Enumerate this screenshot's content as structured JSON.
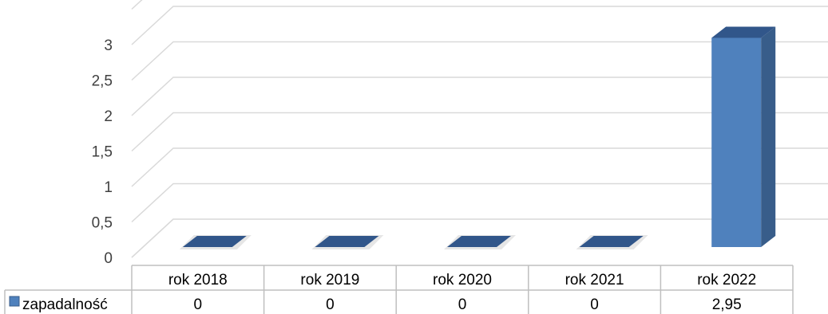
{
  "chart_data": {
    "type": "bar",
    "categories": [
      "rok 2018",
      "rok 2019",
      "rok 2020",
      "rok 2021",
      "rok 2022"
    ],
    "series": [
      {
        "name": "zapadalność",
        "values": [
          0,
          0,
          0,
          0,
          2.95
        ],
        "value_labels": [
          "0",
          "0",
          "0",
          "0",
          "2,95"
        ]
      }
    ],
    "y_ticks": [
      0,
      0.5,
      1,
      1.5,
      2,
      2.5,
      3
    ],
    "y_tick_labels": [
      "0",
      "0,5",
      "1",
      "1,5",
      "2",
      "2,5",
      "3"
    ],
    "ylim": [
      0,
      3.5
    ],
    "grid": true,
    "legend": "data-table-left",
    "colors": {
      "bar_front": "#4f81bd",
      "bar_side": "#385d8a",
      "bar_top": "#31568a",
      "grid": "#d9d9d9"
    }
  }
}
